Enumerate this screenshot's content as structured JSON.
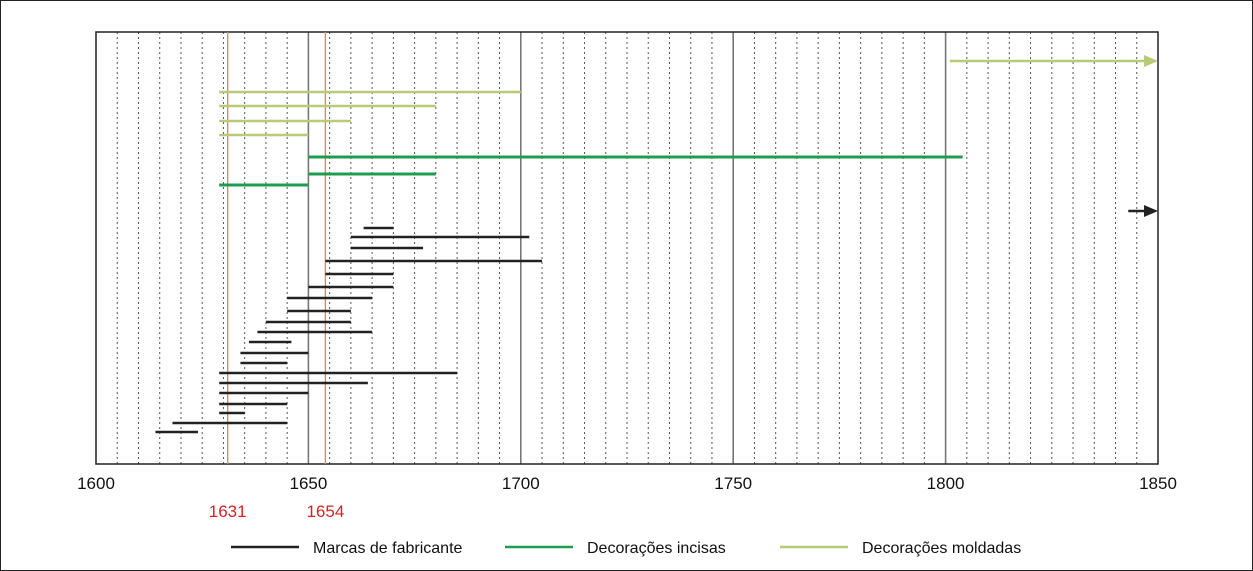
{
  "chart_data": {
    "type": "timeline-range",
    "xlim": [
      1600,
      1850
    ],
    "x_ticks": [
      1600,
      1650,
      1700,
      1750,
      1800,
      1850
    ],
    "x_tick_labels": [
      "1600",
      "1650",
      "1700",
      "1750",
      "1800",
      "1850"
    ],
    "minor_grid_step": 5,
    "reference_lines": [
      {
        "value": 1631,
        "label": "1631",
        "color": "#f08060"
      },
      {
        "value": 1654,
        "label": "1654",
        "color": "#f08060"
      }
    ],
    "series": [
      {
        "name": "Decorações moldadas",
        "color": "#b8cc78",
        "ranges": [
          {
            "start": 1801,
            "end": 1850,
            "open_ended": true
          },
          {
            "start": 1629,
            "end": 1700
          },
          {
            "start": 1629,
            "end": 1680
          },
          {
            "start": 1629,
            "end": 1660
          },
          {
            "start": 1629,
            "end": 1650
          }
        ]
      },
      {
        "name": "Decorações incisas",
        "color": "#1f9d4f",
        "ranges": [
          {
            "start": 1650,
            "end": 1804
          },
          {
            "start": 1650,
            "end": 1680
          },
          {
            "start": 1629,
            "end": 1650
          }
        ]
      },
      {
        "name": "Marcas de fabricante",
        "color": "#222222",
        "ranges": [
          {
            "start": 1843,
            "end": 1850,
            "open_ended": true
          },
          {
            "start": 1663,
            "end": 1670
          },
          {
            "start": 1660,
            "end": 1702
          },
          {
            "start": 1660,
            "end": 1677
          },
          {
            "start": 1654,
            "end": 1705
          },
          {
            "start": 1654,
            "end": 1670
          },
          {
            "start": 1650,
            "end": 1670
          },
          {
            "start": 1645,
            "end": 1665
          },
          {
            "start": 1645,
            "end": 1660
          },
          {
            "start": 1640,
            "end": 1660
          },
          {
            "start": 1638,
            "end": 1665
          },
          {
            "start": 1636,
            "end": 1646
          },
          {
            "start": 1634,
            "end": 1650
          },
          {
            "start": 1634,
            "end": 1645
          },
          {
            "start": 1629,
            "end": 1685
          },
          {
            "start": 1629,
            "end": 1664
          },
          {
            "start": 1629,
            "end": 1650
          },
          {
            "start": 1629,
            "end": 1645
          },
          {
            "start": 1629,
            "end": 1635
          },
          {
            "start": 1618,
            "end": 1645
          },
          {
            "start": 1614,
            "end": 1624
          }
        ]
      }
    ],
    "legend": {
      "placement": "bottom",
      "items": [
        {
          "label": "Marcas de fabricante",
          "color": "#222222"
        },
        {
          "label": "Decorações incisas",
          "color": "#1f9d4f"
        },
        {
          "label": "Decorações moldadas",
          "color": "#b8cc78"
        }
      ]
    }
  }
}
